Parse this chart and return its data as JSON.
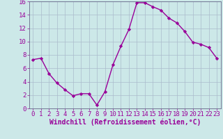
{
  "x": [
    0,
    1,
    2,
    3,
    4,
    5,
    6,
    7,
    8,
    9,
    10,
    11,
    12,
    13,
    14,
    15,
    16,
    17,
    18,
    19,
    20,
    21,
    22,
    23
  ],
  "y": [
    7.3,
    7.5,
    5.2,
    3.8,
    2.8,
    1.9,
    2.2,
    2.2,
    0.5,
    2.5,
    6.5,
    9.3,
    11.8,
    15.8,
    15.8,
    15.2,
    14.7,
    13.5,
    12.8,
    11.5,
    9.9,
    9.6,
    9.1,
    7.5
  ],
  "line_color": "#990099",
  "marker": "D",
  "marker_size": 2.2,
  "bg_color": "#cce8e8",
  "grid_color": "#aabbcc",
  "xlabel": "Windchill (Refroidissement éolien,°C)",
  "xlabel_color": "#990099",
  "tick_color": "#990099",
  "ylim": [
    0,
    16
  ],
  "xlim": [
    -0.5,
    23.5
  ],
  "yticks": [
    0,
    2,
    4,
    6,
    8,
    10,
    12,
    14,
    16
  ],
  "xticks": [
    0,
    1,
    2,
    3,
    4,
    5,
    6,
    7,
    8,
    9,
    10,
    11,
    12,
    13,
    14,
    15,
    16,
    17,
    18,
    19,
    20,
    21,
    22,
    23
  ],
  "line_width": 1.0,
  "font_size": 6.5,
  "xlabel_fontsize": 7.0,
  "spine_color": "#666688"
}
